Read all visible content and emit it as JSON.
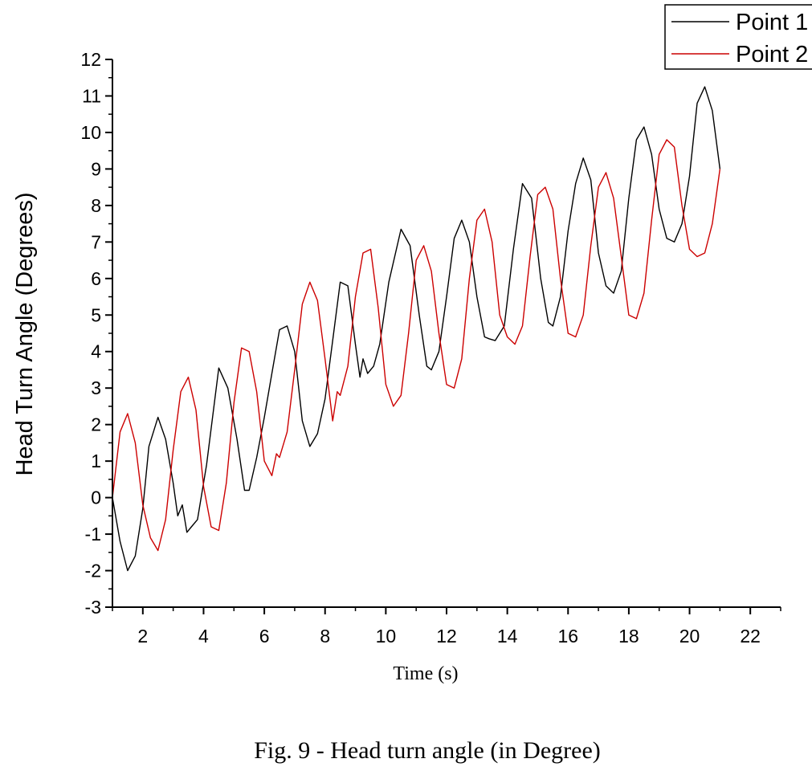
{
  "chart_data": {
    "type": "line",
    "xlabel": "Time (s)",
    "ylabel": "Head Turn Angle (Degrees)",
    "caption": "Fig. 9 - Head turn angle (in Degree)",
    "xlim": [
      1,
      23
    ],
    "ylim": [
      -3,
      12
    ],
    "x_ticks": [
      2,
      4,
      6,
      8,
      10,
      12,
      14,
      16,
      18,
      20,
      22
    ],
    "y_ticks": [
      -3,
      -2,
      -1,
      0,
      1,
      2,
      3,
      4,
      5,
      6,
      7,
      8,
      9,
      10,
      11,
      12
    ],
    "grid": false,
    "legend_position": "top-right",
    "series": [
      {
        "name": "Point 1",
        "color": "#000000",
        "x": [
          1.0,
          1.25,
          1.5,
          1.75,
          2.0,
          2.2,
          2.5,
          2.75,
          3.0,
          3.15,
          3.3,
          3.45,
          3.6,
          3.8,
          4.1,
          4.5,
          4.8,
          5.1,
          5.35,
          5.5,
          5.75,
          6.0,
          6.25,
          6.5,
          6.75,
          7.0,
          7.25,
          7.5,
          7.75,
          8.0,
          8.25,
          8.5,
          8.75,
          9.0,
          9.15,
          9.25,
          9.4,
          9.6,
          9.8,
          10.1,
          10.5,
          10.8,
          11.1,
          11.35,
          11.5,
          11.75,
          12.0,
          12.25,
          12.5,
          12.75,
          13.0,
          13.25,
          13.4,
          13.6,
          13.9,
          14.2,
          14.5,
          14.8,
          15.1,
          15.35,
          15.5,
          15.75,
          16.0,
          16.25,
          16.5,
          16.75,
          17.0,
          17.25,
          17.5,
          17.75,
          18.0,
          18.25,
          18.5,
          18.75,
          19.0,
          19.25,
          19.5,
          19.75,
          20.0,
          20.25,
          20.5,
          20.75,
          21.0
        ],
        "values": [
          0.0,
          -1.2,
          -2.0,
          -1.6,
          -0.3,
          1.4,
          2.2,
          1.6,
          0.4,
          -0.5,
          -0.2,
          -0.95,
          -0.8,
          -0.6,
          0.9,
          3.55,
          3.0,
          1.6,
          0.2,
          0.2,
          1.1,
          2.2,
          3.4,
          4.6,
          4.7,
          4.0,
          2.1,
          1.4,
          1.75,
          2.7,
          4.3,
          5.9,
          5.8,
          4.2,
          3.3,
          3.8,
          3.4,
          3.6,
          4.2,
          5.9,
          7.35,
          6.9,
          5.0,
          3.6,
          3.5,
          4.0,
          5.5,
          7.1,
          7.6,
          7.0,
          5.5,
          4.4,
          4.35,
          4.3,
          4.7,
          6.8,
          8.6,
          8.2,
          6.0,
          4.8,
          4.7,
          5.5,
          7.3,
          8.6,
          9.3,
          8.7,
          6.7,
          5.8,
          5.6,
          6.2,
          8.2,
          9.8,
          10.15,
          9.4,
          7.9,
          7.1,
          7.0,
          7.5,
          8.8,
          10.8,
          11.25,
          10.6,
          9.0
        ]
      },
      {
        "name": "Point 2",
        "color": "#cc0000",
        "x": [
          1.0,
          1.25,
          1.5,
          1.75,
          2.0,
          2.25,
          2.5,
          2.75,
          3.0,
          3.25,
          3.5,
          3.75,
          4.0,
          4.25,
          4.5,
          4.75,
          5.0,
          5.25,
          5.5,
          5.75,
          6.0,
          6.25,
          6.4,
          6.5,
          6.75,
          7.0,
          7.25,
          7.5,
          7.75,
          8.0,
          8.25,
          8.4,
          8.5,
          8.75,
          9.0,
          9.25,
          9.5,
          9.75,
          10.0,
          10.25,
          10.5,
          10.75,
          11.0,
          11.25,
          11.5,
          11.75,
          12.0,
          12.25,
          12.5,
          12.75,
          13.0,
          13.25,
          13.5,
          13.75,
          14.0,
          14.25,
          14.5,
          14.75,
          15.0,
          15.25,
          15.5,
          15.75,
          16.0,
          16.25,
          16.5,
          16.75,
          17.0,
          17.25,
          17.5,
          17.75,
          18.0,
          18.25,
          18.5,
          18.75,
          19.0,
          19.25,
          19.5,
          19.75,
          20.0,
          20.25,
          20.5,
          20.75,
          21.0
        ],
        "values": [
          0.0,
          1.8,
          2.3,
          1.5,
          -0.2,
          -1.1,
          -1.45,
          -0.6,
          1.3,
          2.9,
          3.3,
          2.4,
          0.3,
          -0.8,
          -0.9,
          0.4,
          2.6,
          4.1,
          4.0,
          2.9,
          1.0,
          0.6,
          1.2,
          1.1,
          1.8,
          3.5,
          5.3,
          5.9,
          5.4,
          3.8,
          2.1,
          2.9,
          2.8,
          3.6,
          5.5,
          6.7,
          6.8,
          5.2,
          3.1,
          2.5,
          2.8,
          4.5,
          6.5,
          6.9,
          6.2,
          4.5,
          3.1,
          3.0,
          3.8,
          6.0,
          7.6,
          7.9,
          7.0,
          5.0,
          4.4,
          4.2,
          4.7,
          6.6,
          8.3,
          8.5,
          7.9,
          6.0,
          4.5,
          4.4,
          5.0,
          6.9,
          8.5,
          8.9,
          8.2,
          6.6,
          5.0,
          4.9,
          5.6,
          7.6,
          9.4,
          9.8,
          9.6,
          8.0,
          6.8,
          6.6,
          6.7,
          7.5,
          9.0
        ]
      }
    ]
  }
}
